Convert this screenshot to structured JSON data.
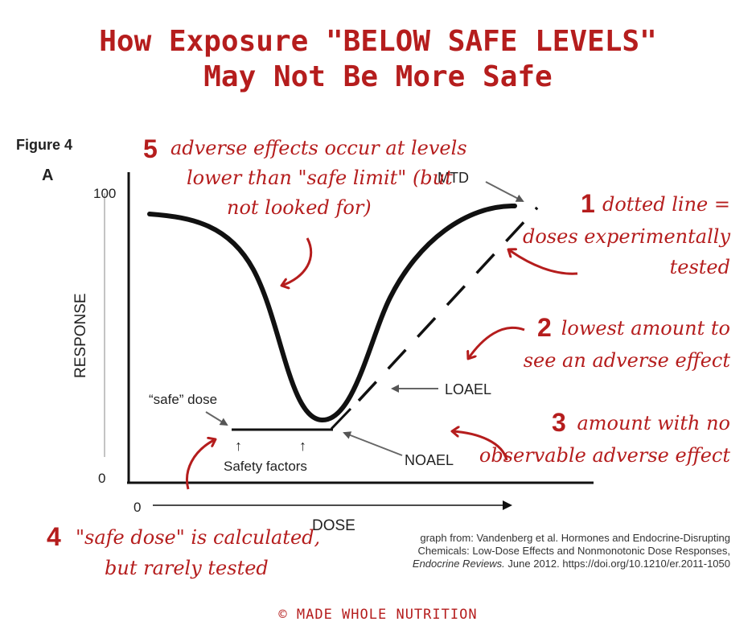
{
  "title": {
    "line1": "How Exposure \"BELOW SAFE LEVELS\"",
    "line2": "May Not Be More Safe"
  },
  "figure": {
    "label": "Figure 4",
    "panel": "A",
    "y_axis_label": "RESPONSE",
    "x_axis_label": "DOSE",
    "y_tick_top": "100",
    "y_tick_bottom": "0",
    "x_tick_zero": "0",
    "labels": {
      "mtd": "MTD",
      "loael": "LOAEL",
      "noael": "NOAEL",
      "safe_dose": "“safe” dose",
      "safety_factors": "Safety factors",
      "safety_arrow": "↑"
    }
  },
  "annotations": [
    {
      "number": "1",
      "lines": [
        "dotted line =",
        "doses experimentally",
        "tested"
      ]
    },
    {
      "number": "2",
      "lines": [
        "lowest amount to",
        "see an adverse effect"
      ]
    },
    {
      "number": "3",
      "lines": [
        "amount with no",
        "observable adverse effect"
      ]
    },
    {
      "number": "4",
      "lines": [
        "\"safe dose\" is calculated,",
        "but rarely tested"
      ]
    },
    {
      "number": "5",
      "lines": [
        "adverse effects occur at levels",
        "lower than \"safe limit\" (but",
        "not looked for)"
      ]
    }
  ],
  "citation": {
    "line1": "graph from: Vandenberg et al. Hormones and Endocrine-Disrupting",
    "line2": "Chemicals: Low-Dose Effects and Nonmonotonic Dose Responses,",
    "journal": "Endocrine Reviews.",
    "line3_rest": " June 2012. https://doi.org/10.1210/er.2011-1050"
  },
  "footer": "© MADE WHOLE NUTRITION",
  "colors": {
    "accent": "#b51d1d",
    "ink": "#111111"
  },
  "chart_data": {
    "type": "line",
    "xlabel": "DOSE",
    "ylabel": "RESPONSE",
    "ylim": [
      0,
      100
    ],
    "y_ticks": [
      "0",
      "100"
    ],
    "series": [
      {
        "style": "solid",
        "shape": "U-shaped nonmonotonic dose response"
      },
      {
        "style": "dashed",
        "shape": "monotonic dose response from NOAEL to MTD"
      }
    ]
  }
}
